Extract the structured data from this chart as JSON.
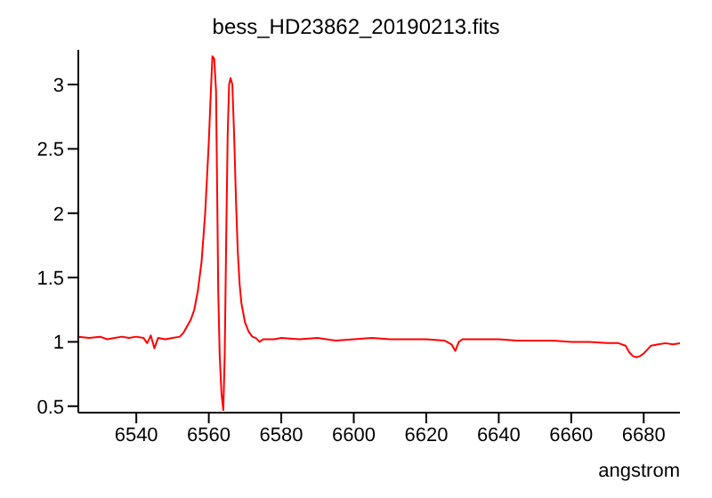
{
  "chart_data": {
    "type": "line",
    "title": "bess_HD23862_20190213.fits",
    "xlabel": "angstrom",
    "xlim": [
      6524,
      6690
    ],
    "xticks": [
      6540,
      6560,
      6580,
      6600,
      6620,
      6640,
      6660,
      6680
    ],
    "ylim": [
      0.45,
      3.27
    ],
    "yticks": [
      0.5,
      1,
      1.5,
      2,
      2.5,
      3
    ],
    "grid": false,
    "legend": false,
    "marker": "none",
    "series": [
      {
        "color": "#ff0000",
        "x": [
          6524,
          6527,
          6530,
          6532,
          6534,
          6536,
          6538,
          6540,
          6542,
          6543,
          6544,
          6545,
          6546,
          6548,
          6550,
          6552,
          6553,
          6554,
          6555,
          6556,
          6557,
          6558,
          6559,
          6560,
          6560.5,
          6561,
          6561.5,
          6562,
          6562.3,
          6562.6,
          6563,
          6563.5,
          6564,
          6564.4,
          6564.8,
          6565.2,
          6565.6,
          6566,
          6566.5,
          6567,
          6567.5,
          6568,
          6568.5,
          6569,
          6570,
          6571,
          6572,
          6573,
          6574,
          6575,
          6576,
          6578,
          6580,
          6585,
          6590,
          6595,
          6600,
          6605,
          6610,
          6615,
          6620,
          6625,
          6627,
          6628,
          6629,
          6630,
          6635,
          6640,
          6645,
          6650,
          6655,
          6660,
          6665,
          6670,
          6673,
          6675,
          6676,
          6677,
          6678,
          6679,
          6680,
          6681,
          6682,
          6684,
          6686,
          6688,
          6690
        ],
        "values": [
          1.04,
          1.03,
          1.04,
          1.02,
          1.03,
          1.04,
          1.03,
          1.04,
          1.03,
          0.99,
          1.05,
          0.95,
          1.03,
          1.02,
          1.03,
          1.04,
          1.07,
          1.12,
          1.17,
          1.25,
          1.4,
          1.62,
          2.0,
          2.55,
          2.9,
          3.22,
          3.2,
          2.95,
          2.2,
          1.4,
          0.9,
          0.6,
          0.47,
          0.9,
          1.8,
          2.6,
          3.0,
          3.05,
          3.0,
          2.6,
          2.1,
          1.7,
          1.45,
          1.3,
          1.15,
          1.08,
          1.04,
          1.03,
          1.0,
          1.02,
          1.02,
          1.02,
          1.03,
          1.02,
          1.03,
          1.01,
          1.02,
          1.03,
          1.02,
          1.02,
          1.02,
          1.01,
          0.98,
          0.93,
          1.0,
          1.02,
          1.02,
          1.02,
          1.01,
          1.01,
          1.01,
          1.0,
          1.0,
          0.99,
          0.99,
          0.97,
          0.92,
          0.89,
          0.88,
          0.89,
          0.91,
          0.94,
          0.97,
          0.98,
          0.99,
          0.98,
          0.99
        ]
      }
    ]
  }
}
